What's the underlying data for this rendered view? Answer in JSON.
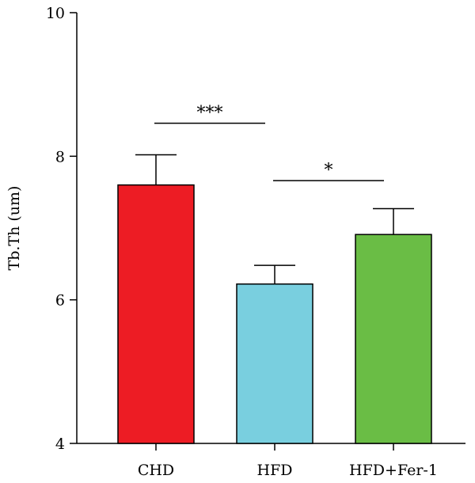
{
  "chart_data": {
    "type": "bar",
    "ylabel": "Tb.Th (um)",
    "ylim": [
      4,
      10
    ],
    "yticks": [
      4,
      6,
      8,
      10
    ],
    "categories": [
      "CHD",
      "HFD",
      "HFD+Fer-1"
    ],
    "values": [
      7.6,
      6.22,
      6.91
    ],
    "errors": [
      0.42,
      0.26,
      0.36
    ],
    "colors": [
      "#ed1c24",
      "#79cfdf",
      "#6abd45"
    ],
    "significance": [
      {
        "from": 0,
        "to": 1,
        "label": "***",
        "y": 8.46
      },
      {
        "from": 1,
        "to": 2,
        "label": "*",
        "y": 7.66
      }
    ]
  }
}
